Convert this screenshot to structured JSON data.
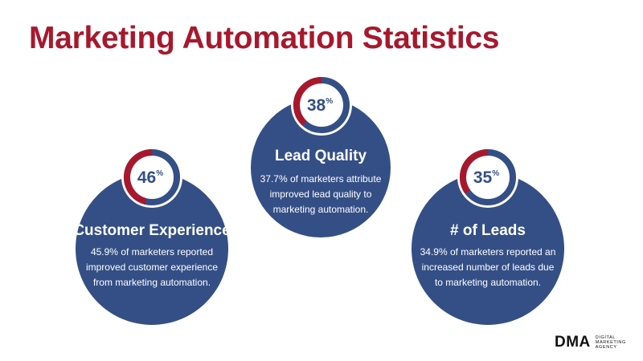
{
  "title": "Marketing Automation Statistics",
  "colors": {
    "title": "#a8182d",
    "circle": "#344f86",
    "ring_accent": "#a8182d",
    "ring_base": "#344f86",
    "badge_text": "#344f86"
  },
  "stats": [
    {
      "id": "lead-quality",
      "value": "38",
      "unit": "%",
      "fraction": 0.38,
      "heading": "Lead Quality",
      "text": "37.7% of marketers attribute improved lead quality to marketing automation."
    },
    {
      "id": "customer-experience",
      "value": "46",
      "unit": "%",
      "fraction": 0.46,
      "heading": "Customer Experience",
      "text": "45.9% of marketers reported improved customer experience from marketing automation."
    },
    {
      "id": "leads",
      "value": "35",
      "unit": "%",
      "fraction": 0.35,
      "heading": "# of Leads",
      "text": "34.9% of marketers reported an increased number of leads due to marketing automation."
    }
  ],
  "logo": {
    "mark": "DMA",
    "line1": "DIGITAL",
    "line2": "MARKETING",
    "line3": "AGENCY"
  }
}
